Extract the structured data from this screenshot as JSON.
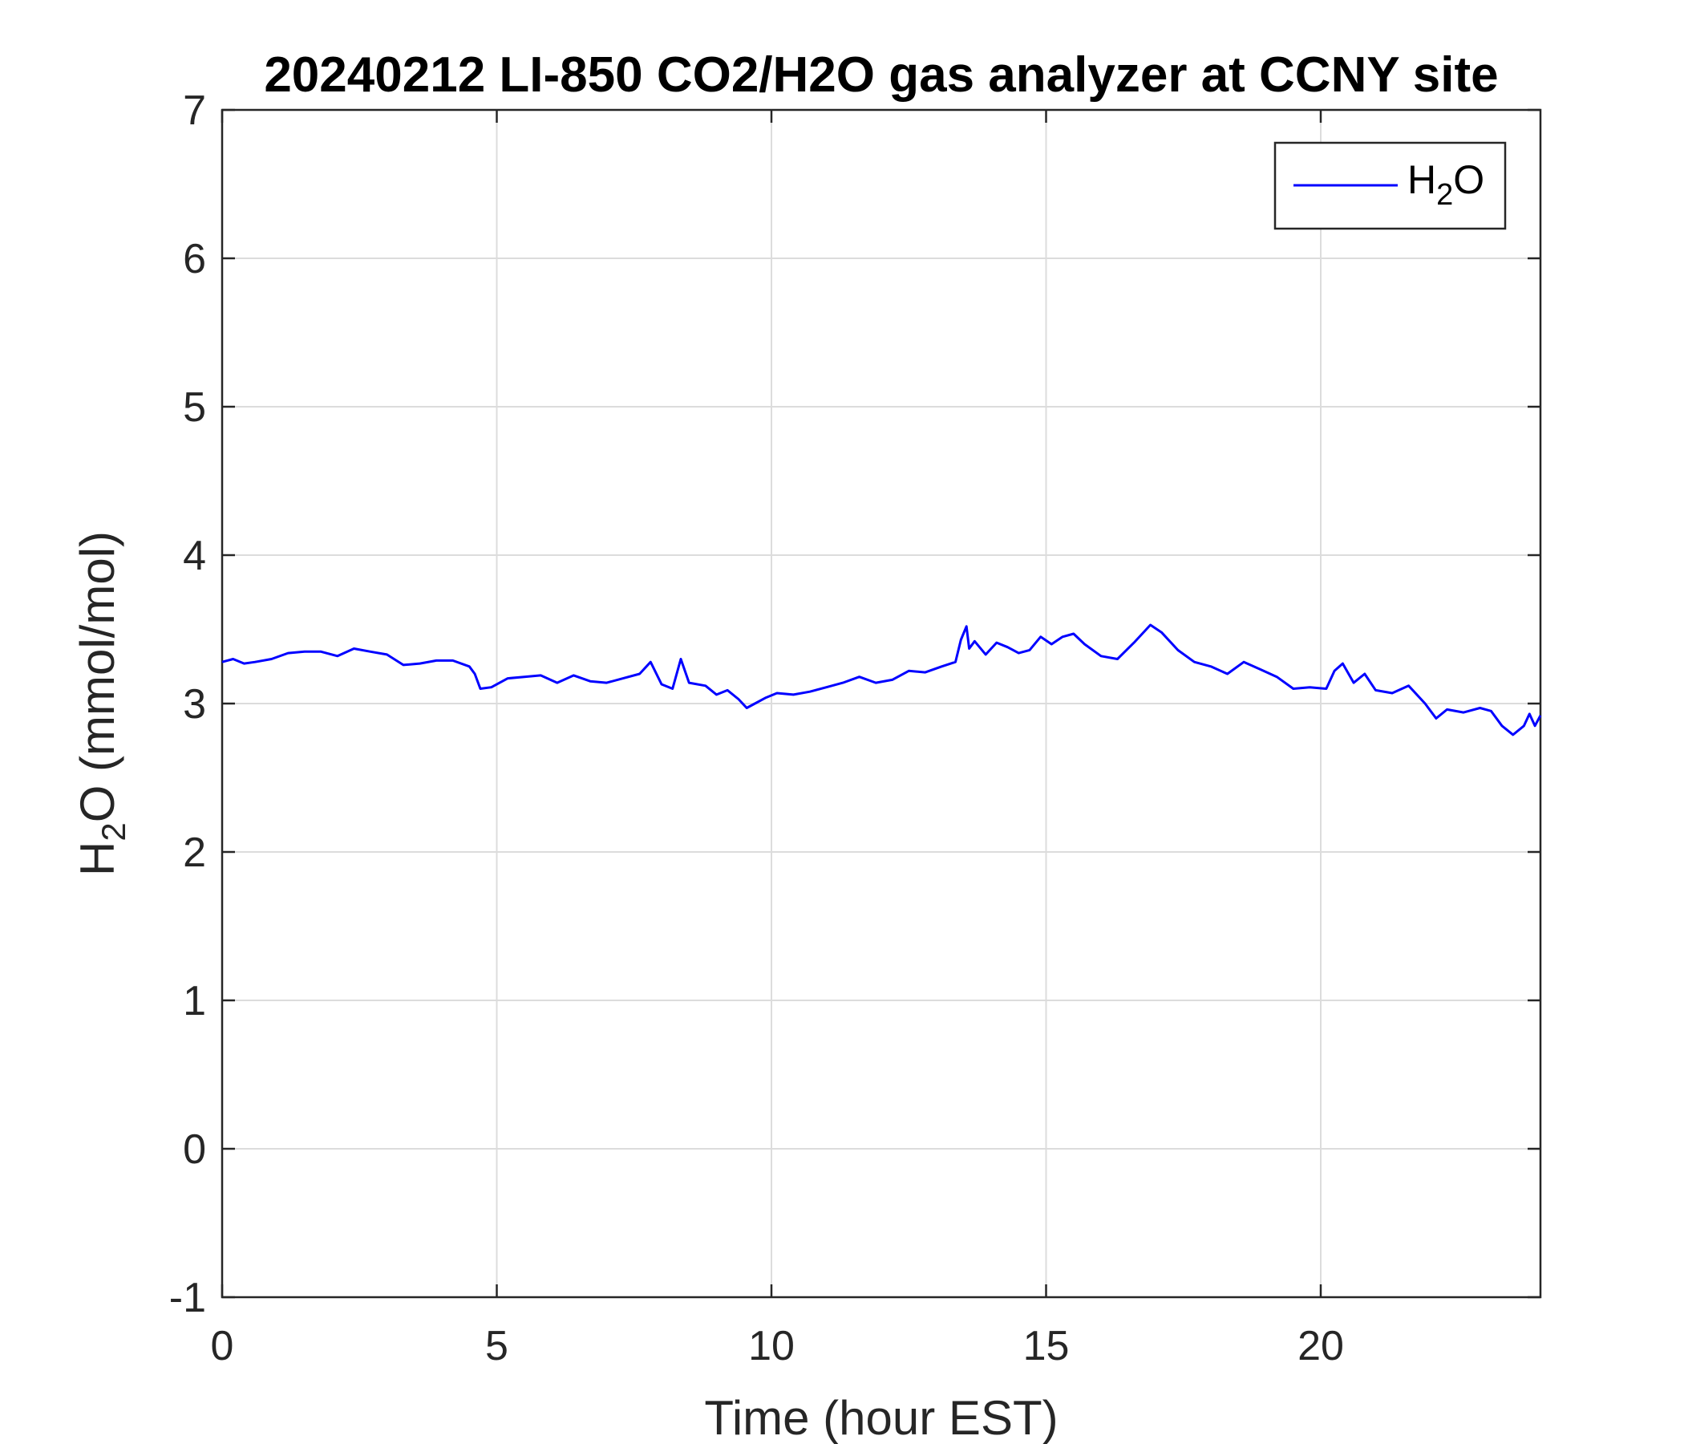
{
  "chart_data": {
    "type": "line",
    "title": "20240212 LI-850 CO2/H2O gas analyzer at CCNY site",
    "xlabel": "Time (hour EST)",
    "ylabel": {
      "prefix": "H",
      "subscript": "2",
      "suffix": "O (mmol/mol)"
    },
    "xlim": [
      0,
      24
    ],
    "ylim": [
      -1,
      7
    ],
    "xticks": [
      0,
      5,
      10,
      15,
      20
    ],
    "yticks": [
      -1,
      0,
      1,
      2,
      3,
      4,
      5,
      6,
      7
    ],
    "grid": true,
    "legend": {
      "location": "top-right",
      "entries": [
        {
          "prefix": "H",
          "subscript": "2",
          "suffix": "O"
        }
      ]
    },
    "series": [
      {
        "color": "#0000ff",
        "x": [
          0,
          0.2,
          0.4,
          0.6,
          0.9,
          1.2,
          1.5,
          1.8,
          2.1,
          2.4,
          2.7,
          3.0,
          3.3,
          3.6,
          3.9,
          4.2,
          4.5,
          4.6,
          4.7,
          4.9,
          5.2,
          5.5,
          5.8,
          6.1,
          6.4,
          6.7,
          7.0,
          7.3,
          7.6,
          7.8,
          8.0,
          8.2,
          8.35,
          8.5,
          8.8,
          9.0,
          9.2,
          9.4,
          9.55,
          9.7,
          9.9,
          10.1,
          10.4,
          10.7,
          11.0,
          11.3,
          11.6,
          11.9,
          12.2,
          12.5,
          12.8,
          13.1,
          13.35,
          13.45,
          13.55,
          13.6,
          13.7,
          13.9,
          14.1,
          14.3,
          14.5,
          14.7,
          14.9,
          15.1,
          15.3,
          15.5,
          15.7,
          16.0,
          16.3,
          16.6,
          16.9,
          17.1,
          17.4,
          17.7,
          18.0,
          18.3,
          18.6,
          18.9,
          19.2,
          19.5,
          19.8,
          20.1,
          20.25,
          20.4,
          20.6,
          20.8,
          21.0,
          21.3,
          21.6,
          21.9,
          22.1,
          22.3,
          22.6,
          22.9,
          23.1,
          23.3,
          23.5,
          23.7,
          23.8,
          23.9,
          24.0
        ],
        "y": [
          3.28,
          3.3,
          3.27,
          3.28,
          3.3,
          3.34,
          3.35,
          3.35,
          3.32,
          3.37,
          3.35,
          3.33,
          3.26,
          3.27,
          3.29,
          3.29,
          3.25,
          3.2,
          3.1,
          3.11,
          3.17,
          3.18,
          3.19,
          3.14,
          3.19,
          3.15,
          3.14,
          3.17,
          3.2,
          3.28,
          3.13,
          3.1,
          3.3,
          3.14,
          3.12,
          3.06,
          3.09,
          3.03,
          2.97,
          3.0,
          3.04,
          3.07,
          3.06,
          3.08,
          3.11,
          3.14,
          3.18,
          3.14,
          3.16,
          3.22,
          3.21,
          3.25,
          3.28,
          3.43,
          3.52,
          3.37,
          3.42,
          3.33,
          3.41,
          3.38,
          3.34,
          3.36,
          3.45,
          3.4,
          3.45,
          3.47,
          3.4,
          3.32,
          3.3,
          3.41,
          3.53,
          3.48,
          3.36,
          3.28,
          3.25,
          3.2,
          3.28,
          3.23,
          3.18,
          3.1,
          3.11,
          3.1,
          3.22,
          3.27,
          3.14,
          3.2,
          3.09,
          3.07,
          3.12,
          3.0,
          2.9,
          2.96,
          2.94,
          2.97,
          2.95,
          2.85,
          2.79,
          2.85,
          2.93,
          2.85,
          2.92
        ]
      }
    ]
  }
}
